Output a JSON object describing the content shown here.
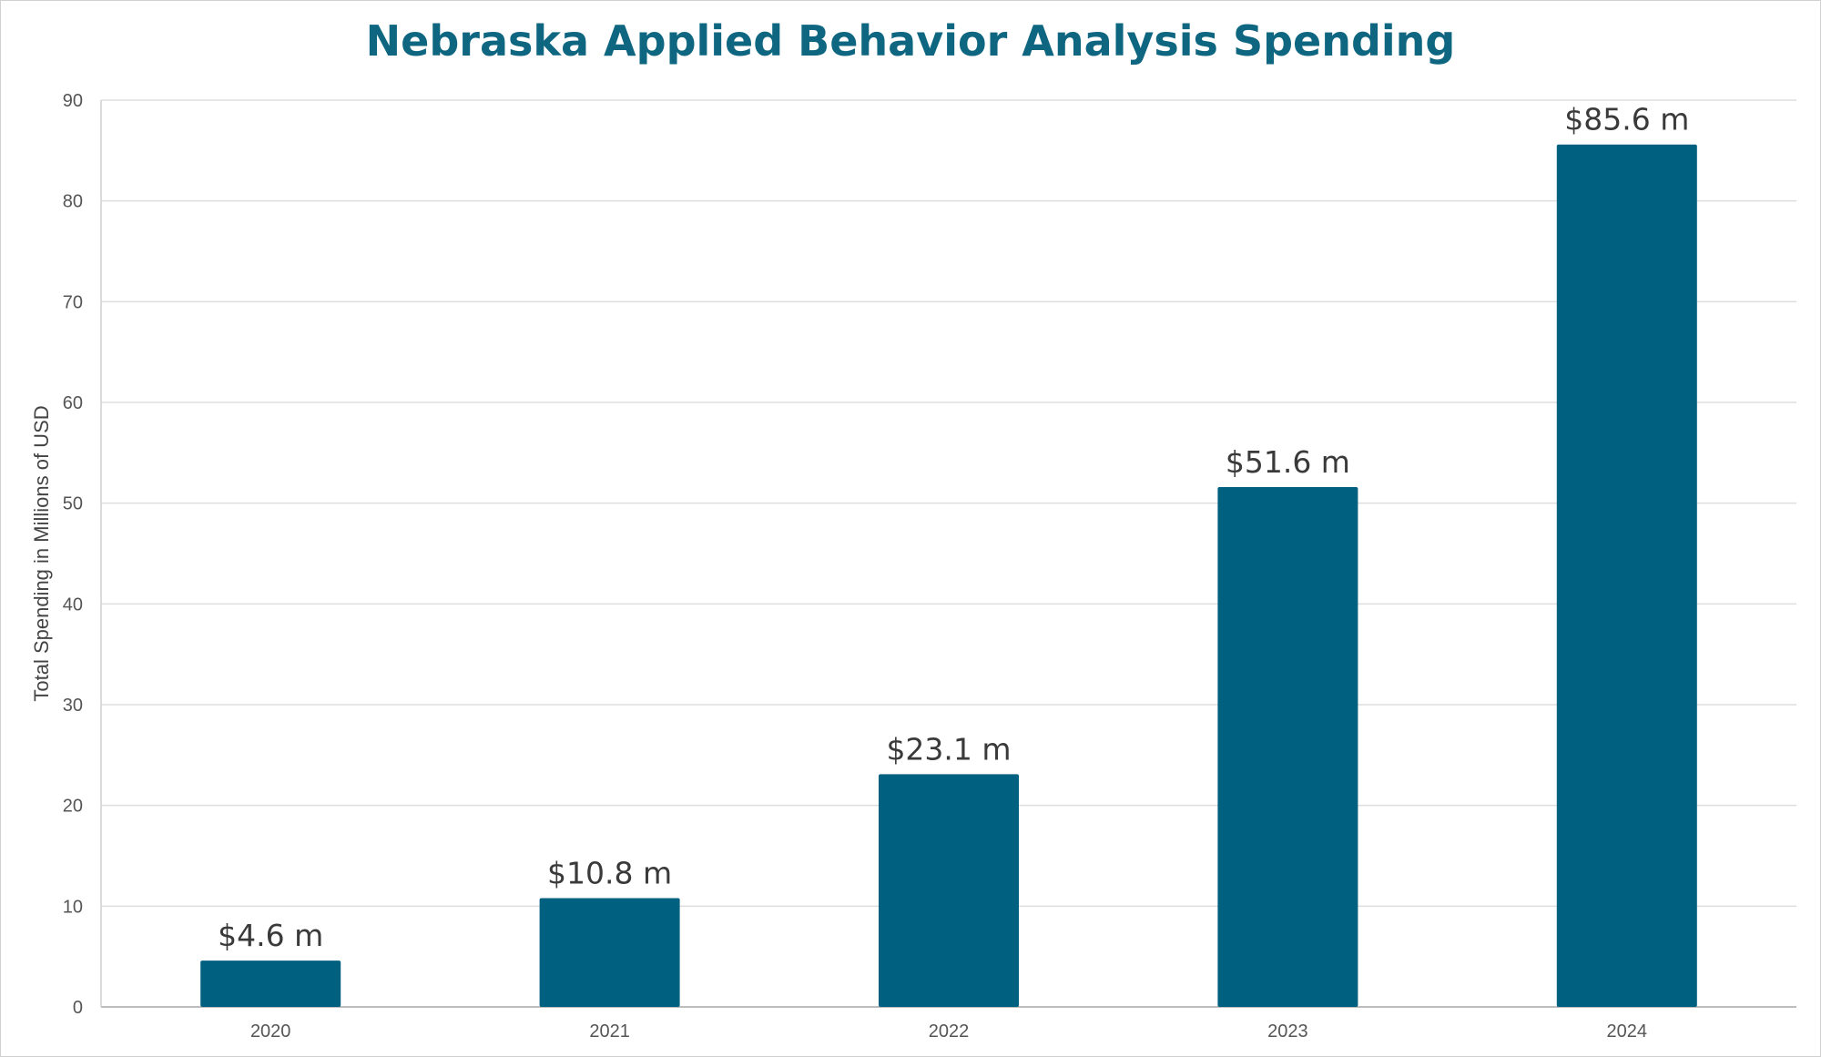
{
  "chart_data": {
    "type": "bar",
    "title": "Nebraska Applied Behavior Analysis Spending",
    "xlabel": "",
    "ylabel": "Total Spending in Millions of USD",
    "categories": [
      "2020",
      "2021",
      "2022",
      "2023",
      "2024"
    ],
    "values": [
      4.6,
      10.8,
      23.1,
      51.6,
      85.6
    ],
    "data_labels": [
      "$4.6 m",
      "$10.8 m",
      "$23.1 m",
      "$51.6 m",
      "$85.6 m"
    ],
    "ylim": [
      0,
      90
    ],
    "yticks": [
      0,
      10,
      20,
      30,
      40,
      50,
      60,
      70,
      80,
      90
    ],
    "grid": true,
    "legend": "none",
    "colors": {
      "bar": "#00607f",
      "title": "#0e6680"
    }
  }
}
